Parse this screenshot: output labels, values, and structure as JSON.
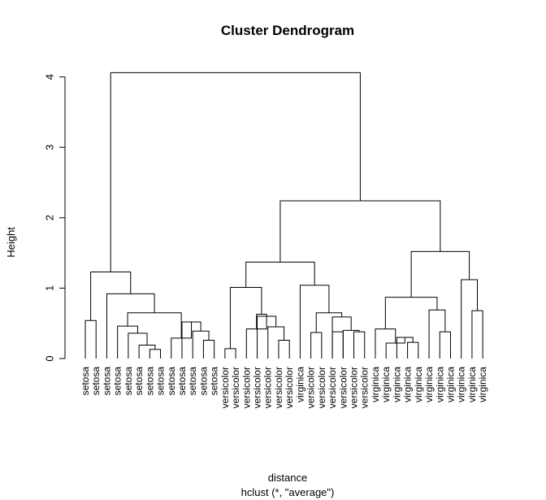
{
  "chart_data": {
    "type": "dendrogram",
    "title": "Cluster Dendrogram",
    "ylabel": "Height",
    "xlabel": "distance",
    "sublabel": "hclust (*, \"average\")",
    "ylim": [
      0,
      4.1
    ],
    "yticks": [
      0,
      1,
      2,
      3,
      4
    ],
    "leaves": [
      "setosa",
      "setosa",
      "setosa",
      "setosa",
      "setosa",
      "setosa",
      "setosa",
      "setosa",
      "setosa",
      "setosa",
      "setosa",
      "setosa",
      "setosa",
      "versicolor",
      "versicolor",
      "versicolor",
      "versicolor",
      "versicolor",
      "versicolor",
      "versicolor",
      "virginica",
      "versicolor",
      "versicolor",
      "versicolor",
      "versicolor",
      "versicolor",
      "versicolor",
      "virginica",
      "virginica",
      "virginica",
      "virginica",
      "virginica",
      "virginica",
      "virginica",
      "virginica",
      "virginica",
      "virginica",
      "virginica"
    ],
    "merges": [
      {
        "id": "n1",
        "left": "L0",
        "right": "L1",
        "height": 0.54
      },
      {
        "id": "n2",
        "left": "L6",
        "right": "L7",
        "height": 0.13
      },
      {
        "id": "n3",
        "left": "L5",
        "right": "n2",
        "height": 0.19
      },
      {
        "id": "n4",
        "left": "L4",
        "right": "n3",
        "height": 0.36
      },
      {
        "id": "n5",
        "left": "L3",
        "right": "n4",
        "height": 0.46
      },
      {
        "id": "n6",
        "left": "L11",
        "right": "L12",
        "height": 0.26
      },
      {
        "id": "n7",
        "left": "L10",
        "right": "n6",
        "height": 0.39
      },
      {
        "id": "n8",
        "left": "L9",
        "right": "n7",
        "height": 0.52
      },
      {
        "id": "n9",
        "left": "L8",
        "right": "n8",
        "height": 0.29
      },
      {
        "id": "n10",
        "left": "n5",
        "right": "n9",
        "height": 0.65
      },
      {
        "id": "n11",
        "left": "L2",
        "right": "n10",
        "height": 0.92
      },
      {
        "id": "n12",
        "left": "n1",
        "right": "n11",
        "height": 1.23
      },
      {
        "id": "n13",
        "left": "L13",
        "right": "L14",
        "height": 0.14
      },
      {
        "id": "n14",
        "left": "L18",
        "right": "L19",
        "height": 0.26
      },
      {
        "id": "n15",
        "left": "L17",
        "right": "n14",
        "height": 0.45
      },
      {
        "id": "n16",
        "left": "L16",
        "right": "n15",
        "height": 0.6
      },
      {
        "id": "n17",
        "left": "L15",
        "right": "n16",
        "height": 0.42
      },
      {
        "id": "n18",
        "left": "n17",
        "right": "n16",
        "height": 0.63
      },
      {
        "id": "n19",
        "left": "n13",
        "right": "n18",
        "height": 1.01
      },
      {
        "id": "n20",
        "left": "L21",
        "right": "L22",
        "height": 0.37
      },
      {
        "id": "n21",
        "left": "L25",
        "right": "L26",
        "height": 0.38
      },
      {
        "id": "n22",
        "left": "L24",
        "right": "n21",
        "height": 0.4
      },
      {
        "id": "n23",
        "left": "L23",
        "right": "n22",
        "height": 0.59
      },
      {
        "id": "n24",
        "left": "L23",
        "right": "L24",
        "height": 0.38
      },
      {
        "id": "n25",
        "left": "n20",
        "right": "n23",
        "height": 0.65
      },
      {
        "id": "n26",
        "left": "L20",
        "right": "n25",
        "height": 1.04
      },
      {
        "id": "n27",
        "left": "n19",
        "right": "n26",
        "height": 1.37
      },
      {
        "id": "n28",
        "left": "L30",
        "right": "L31",
        "height": 0.23
      },
      {
        "id": "n29",
        "left": "L29",
        "right": "n28",
        "height": 0.3
      },
      {
        "id": "n30",
        "left": "L28",
        "right": "n29",
        "height": 0.22
      },
      {
        "id": "n31",
        "left": "L27",
        "right": "n30",
        "height": 0.42
      },
      {
        "id": "n32",
        "left": "L33",
        "right": "L34",
        "height": 0.38
      },
      {
        "id": "n33",
        "left": "L32",
        "right": "n32",
        "height": 0.69
      },
      {
        "id": "n34",
        "left": "n31",
        "right": "n33",
        "height": 0.87
      },
      {
        "id": "n35",
        "left": "L36",
        "right": "L37",
        "height": 0.68
      },
      {
        "id": "n36",
        "left": "L35",
        "right": "n35",
        "height": 1.12
      },
      {
        "id": "n37",
        "left": "n34",
        "right": "n36",
        "height": 1.52
      },
      {
        "id": "n38",
        "left": "n27",
        "right": "n37",
        "height": 2.24
      },
      {
        "id": "n39",
        "left": "n12",
        "right": "n38",
        "height": 4.06
      }
    ]
  }
}
